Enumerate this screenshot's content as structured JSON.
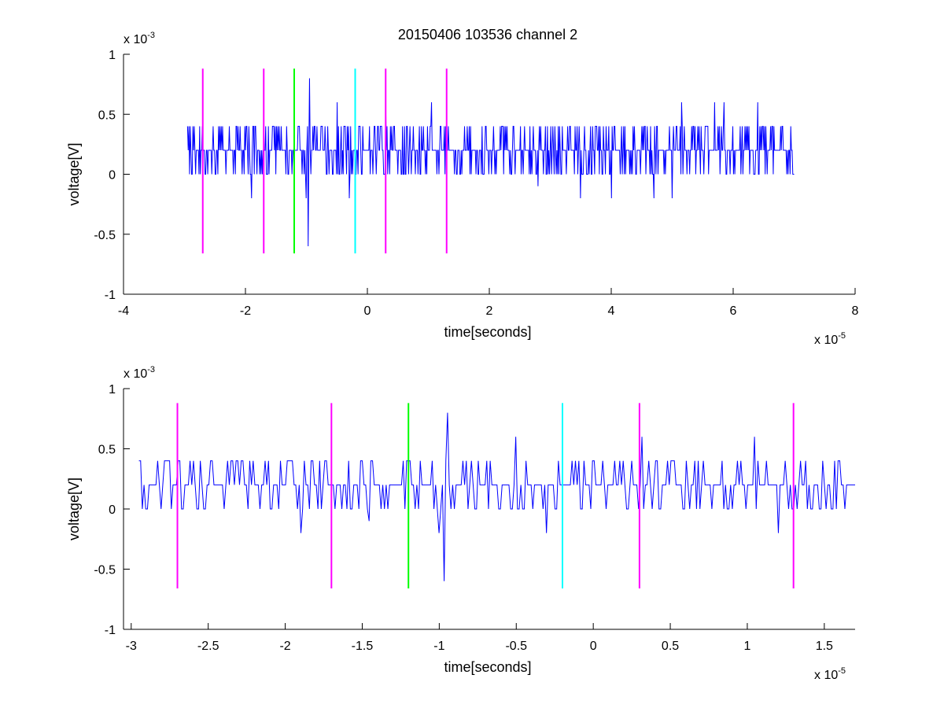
{
  "figure_title": "20150406 103536 channel 2",
  "chart_data": [
    {
      "type": "line",
      "title": "20150406 103536 channel 2",
      "xlabel": "time[seconds]",
      "ylabel": "voltage[V]",
      "x_exponent": "x 10",
      "x_exponent_power": "-5",
      "y_exponent": "x 10",
      "y_exponent_power": "-3",
      "x_units_note": "x values in units of 1e-5 seconds",
      "y_units_note": "y values in units of 1e-3 volts",
      "xlim": [
        -4,
        8
      ],
      "ylim": [
        -1,
        1
      ],
      "x_ticks": [
        -4,
        -2,
        0,
        2,
        4,
        6,
        8
      ],
      "x_tick_labels": [
        "-4",
        "-2",
        "0",
        "2",
        "4",
        "6",
        "8"
      ],
      "y_ticks": [
        -1,
        -0.5,
        0,
        0.5,
        1
      ],
      "y_tick_labels": [
        "-1",
        "-0.5",
        "0",
        "0.5",
        "1"
      ],
      "grid": false,
      "series": [
        {
          "color": "#0000ff",
          "x_range": [
            -2.95,
            7.0
          ],
          "levels": [
            0,
            0.2,
            0.4
          ],
          "description_points": [
            [
              -2.95,
              0.4
            ],
            [
              -2.9,
              0.2
            ],
            [
              -2.88,
              0.0
            ],
            [
              -2.85,
              0.2
            ],
            [
              -2.8,
              0.2
            ],
            [
              -2.75,
              0.4
            ],
            [
              -2.72,
              0.2
            ],
            [
              -1.9,
              -0.2
            ],
            [
              -1.2,
              0.0
            ],
            [
              -1.0,
              -0.2
            ],
            [
              -0.97,
              -0.6
            ],
            [
              -0.95,
              0.8
            ],
            [
              -0.5,
              0.6
            ],
            [
              -0.3,
              -0.2
            ],
            [
              0.3,
              0.6
            ],
            [
              1.05,
              0.6
            ],
            [
              2.8,
              -0.1
            ],
            [
              3.5,
              -0.2
            ],
            [
              4.0,
              -0.2
            ],
            [
              4.7,
              -0.2
            ],
            [
              5.0,
              -0.2
            ],
            [
              5.15,
              0.6
            ],
            [
              5.7,
              0.6
            ],
            [
              5.85,
              0.6
            ],
            [
              6.4,
              0.6
            ],
            [
              7.0,
              0.0
            ]
          ]
        }
      ],
      "markers": [
        {
          "x": -2.7,
          "color": "#ff00ff",
          "y_top": 0.88,
          "y_bottom": -0.66
        },
        {
          "x": -1.7,
          "color": "#ff00ff",
          "y_top": 0.88,
          "y_bottom": -0.66
        },
        {
          "x": -1.2,
          "color": "#00ff00",
          "y_top": 0.88,
          "y_bottom": -0.66
        },
        {
          "x": -0.2,
          "color": "#00ffff",
          "y_top": 0.88,
          "y_bottom": -0.66
        },
        {
          "x": 0.3,
          "color": "#ff00ff",
          "y_top": 0.88,
          "y_bottom": -0.66
        },
        {
          "x": 1.3,
          "color": "#ff00ff",
          "y_top": 0.88,
          "y_bottom": -0.66
        }
      ]
    },
    {
      "type": "line",
      "title": "",
      "xlabel": "time[seconds]",
      "ylabel": "voltage[V]",
      "x_exponent": "x 10",
      "x_exponent_power": "-5",
      "y_exponent": "x 10",
      "y_exponent_power": "-3",
      "x_units_note": "x values in units of 1e-5 seconds",
      "y_units_note": "y values in units of 1e-3 volts",
      "xlim": [
        -3.05,
        1.7
      ],
      "ylim": [
        -1,
        1
      ],
      "x_ticks": [
        -3,
        -2.5,
        -2,
        -1.5,
        -1,
        -0.5,
        0,
        0.5,
        1,
        1.5
      ],
      "x_tick_labels": [
        "-3",
        "-2.5",
        "-2",
        "-1.5",
        "-1",
        "-0.5",
        "0",
        "0.5",
        "1",
        "1.5"
      ],
      "y_ticks": [
        -1,
        -0.5,
        0,
        0.5,
        1
      ],
      "y_tick_labels": [
        "-1",
        "-0.5",
        "0",
        "0.5",
        "1"
      ],
      "grid": false,
      "series": [
        {
          "color": "#0000ff",
          "x_range": [
            -2.95,
            1.7
          ],
          "levels": [
            0,
            0.2,
            0.4
          ],
          "description_points": [
            [
              -2.95,
              0.4
            ],
            [
              -2.92,
              0.2
            ],
            [
              -2.9,
              0.0
            ],
            [
              -2.85,
              0.2
            ],
            [
              -2.8,
              0.2
            ],
            [
              -2.75,
              0.4
            ],
            [
              -2.72,
              0.2
            ],
            [
              -1.9,
              -0.2
            ],
            [
              -1.45,
              -0.1
            ],
            [
              -1.2,
              0.4
            ],
            [
              -1.0,
              -0.2
            ],
            [
              -0.97,
              -0.6
            ],
            [
              -0.95,
              0.8
            ],
            [
              -0.5,
              0.6
            ],
            [
              -0.3,
              -0.2
            ],
            [
              0.32,
              0.6
            ],
            [
              1.05,
              0.6
            ],
            [
              1.2,
              -0.2
            ],
            [
              1.7,
              0.2
            ]
          ]
        }
      ],
      "markers": [
        {
          "x": -2.7,
          "color": "#ff00ff",
          "y_top": 0.88,
          "y_bottom": -0.66
        },
        {
          "x": -1.7,
          "color": "#ff00ff",
          "y_top": 0.88,
          "y_bottom": -0.66
        },
        {
          "x": -1.2,
          "color": "#00ff00",
          "y_top": 0.88,
          "y_bottom": -0.66
        },
        {
          "x": -0.2,
          "color": "#00ffff",
          "y_top": 0.88,
          "y_bottom": -0.66
        },
        {
          "x": 0.3,
          "color": "#ff00ff",
          "y_top": 0.88,
          "y_bottom": -0.66
        },
        {
          "x": 1.3,
          "color": "#ff00ff",
          "y_top": 0.88,
          "y_bottom": -0.66
        }
      ]
    }
  ]
}
